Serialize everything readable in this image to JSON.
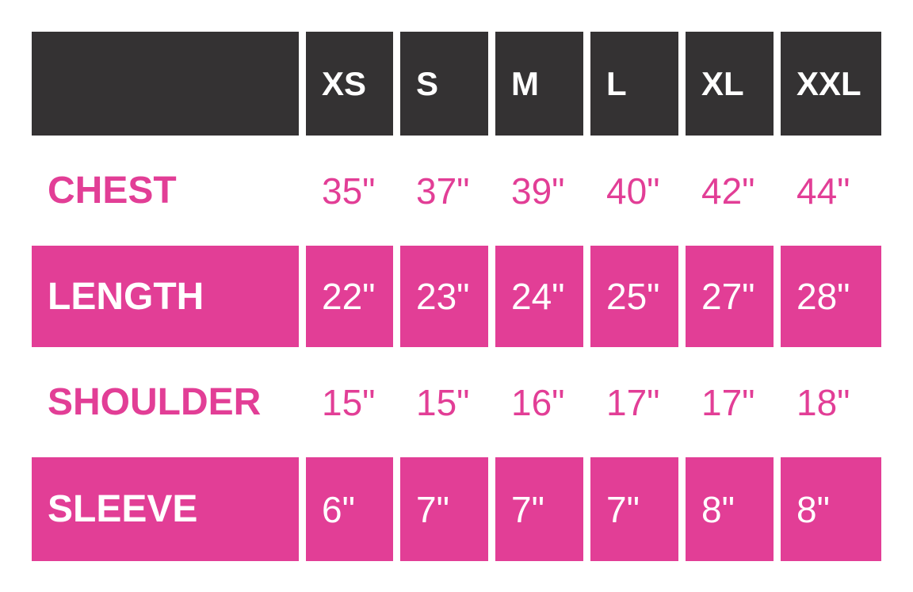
{
  "colors": {
    "header_bg": "#343233",
    "accent_pink": "#E23E96",
    "background": "#FFFFFF",
    "header_text": "#FFFFFF"
  },
  "chart_data": {
    "type": "table",
    "title": "",
    "description": "Garment size chart with measurements in inches",
    "columns": [
      "",
      "XS",
      "S",
      "M",
      "L",
      "XL",
      "XXL"
    ],
    "rows": [
      {
        "label": "CHEST",
        "style": "plain",
        "values": [
          "35\"",
          "37\"",
          "39\"",
          "40\"",
          "42\"",
          "44\""
        ]
      },
      {
        "label": "LENGTH",
        "style": "pink",
        "values": [
          "22\"",
          "23\"",
          "24\"",
          "25\"",
          "27\"",
          "28\""
        ]
      },
      {
        "label": "SHOULDER",
        "style": "plain",
        "values": [
          "15\"",
          "15\"",
          "16\"",
          "17\"",
          "17\"",
          "18\""
        ]
      },
      {
        "label": "SLEEVE",
        "style": "pink",
        "values": [
          "6\"",
          "7\"",
          "7\"",
          "7\"",
          "8\"",
          "8\""
        ]
      }
    ],
    "layout": {
      "header_alignment": "left",
      "cell_alignment": "left",
      "grid": "white gaps between colored cells",
      "row_style_alternation": [
        "header-dark",
        "plain",
        "pink",
        "plain",
        "pink"
      ]
    }
  }
}
